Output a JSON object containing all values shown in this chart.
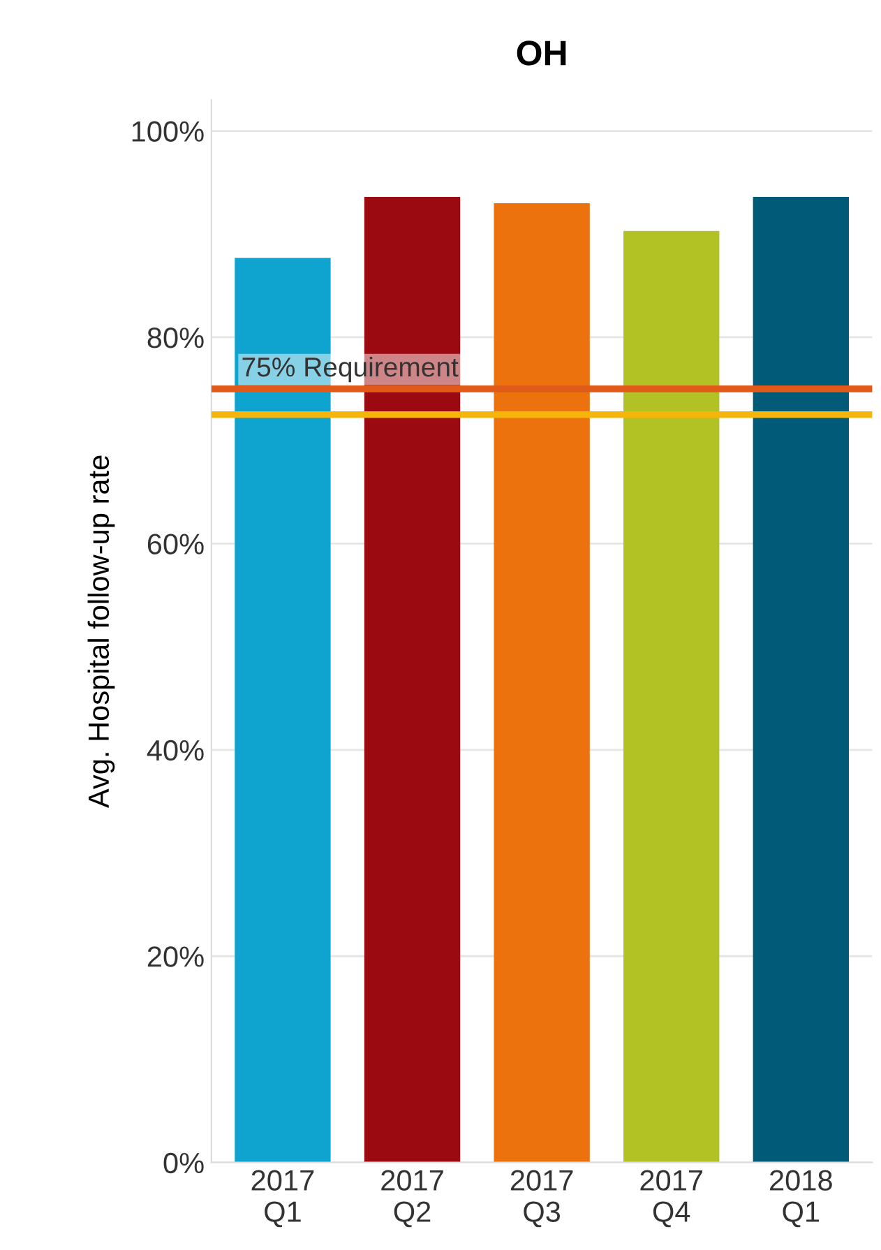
{
  "chart_data": {
    "type": "bar",
    "title": "OH",
    "ylabel": "Avg. Hospital follow-up rate",
    "categories": [
      "2017\nQ1",
      "2017\nQ2",
      "2017\nQ3",
      "2017\nQ4",
      "2018\nQ1"
    ],
    "values": [
      87.7,
      93.6,
      93.0,
      90.3,
      93.6
    ],
    "colors": [
      "#0fa3cf",
      "#9a0a10",
      "#ec720e",
      "#b2c225",
      "#005a78"
    ],
    "ylim": [
      0,
      103
    ],
    "yticks": [
      {
        "value": 0,
        "label": "0%"
      },
      {
        "value": 20,
        "label": "20%"
      },
      {
        "value": 40,
        "label": "40%"
      },
      {
        "value": 60,
        "label": "60%"
      },
      {
        "value": 80,
        "label": "80%"
      },
      {
        "value": 100,
        "label": "100%"
      }
    ],
    "grid": "y",
    "ref_lines": [
      {
        "axis": "y",
        "value": 75,
        "label": "75% Requirement",
        "color": "#e05a1a"
      },
      {
        "axis": "y",
        "value": 72.5,
        "color": "#f5b50a"
      }
    ]
  }
}
